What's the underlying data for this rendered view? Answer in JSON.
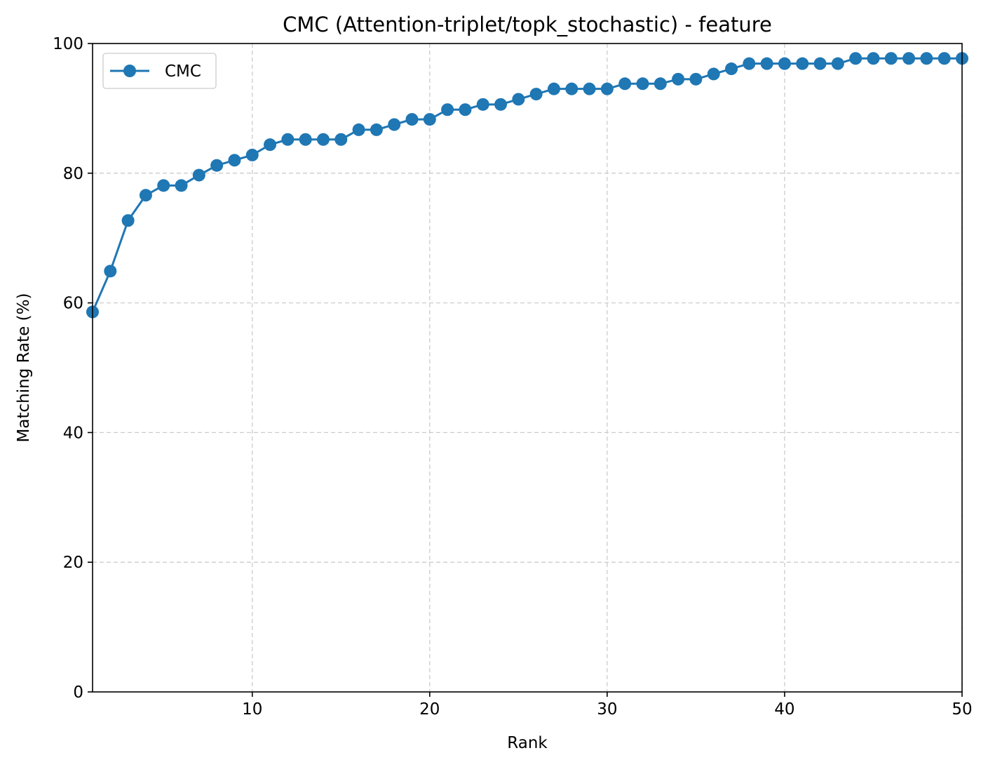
{
  "chart_data": {
    "type": "line",
    "title": "CMC (Attention-triplet/topk_stochastic) - feature",
    "xlabel": "Rank",
    "ylabel": "Matching Rate (%)",
    "xlim": [
      1,
      50
    ],
    "ylim": [
      0,
      100
    ],
    "xticks": [
      10,
      20,
      30,
      40,
      50
    ],
    "yticks": [
      0,
      20,
      40,
      60,
      80,
      100
    ],
    "grid": true,
    "legend": {
      "position": "top-left",
      "entries": [
        "CMC"
      ]
    },
    "series": [
      {
        "name": "CMC",
        "color": "#1f77b4",
        "marker": "circle",
        "x": [
          1,
          2,
          3,
          4,
          5,
          6,
          7,
          8,
          9,
          10,
          11,
          12,
          13,
          14,
          15,
          16,
          17,
          18,
          19,
          20,
          21,
          22,
          23,
          24,
          25,
          26,
          27,
          28,
          29,
          30,
          31,
          32,
          33,
          34,
          35,
          36,
          37,
          38,
          39,
          40,
          41,
          42,
          43,
          44,
          45,
          46,
          47,
          48,
          49,
          50
        ],
        "values": [
          58.6,
          64.9,
          72.7,
          76.6,
          78.1,
          78.1,
          79.7,
          81.2,
          82.0,
          82.8,
          84.4,
          85.2,
          85.2,
          85.2,
          85.2,
          86.7,
          86.7,
          87.5,
          88.3,
          88.3,
          89.8,
          89.8,
          90.6,
          90.6,
          91.4,
          92.2,
          93.0,
          93.0,
          93.0,
          93.0,
          93.8,
          93.8,
          93.8,
          94.5,
          94.5,
          95.3,
          96.1,
          96.9,
          96.9,
          96.9,
          96.9,
          96.9,
          96.9,
          97.7,
          97.7,
          97.7,
          97.7,
          97.7,
          97.7,
          97.7
        ]
      }
    ]
  }
}
